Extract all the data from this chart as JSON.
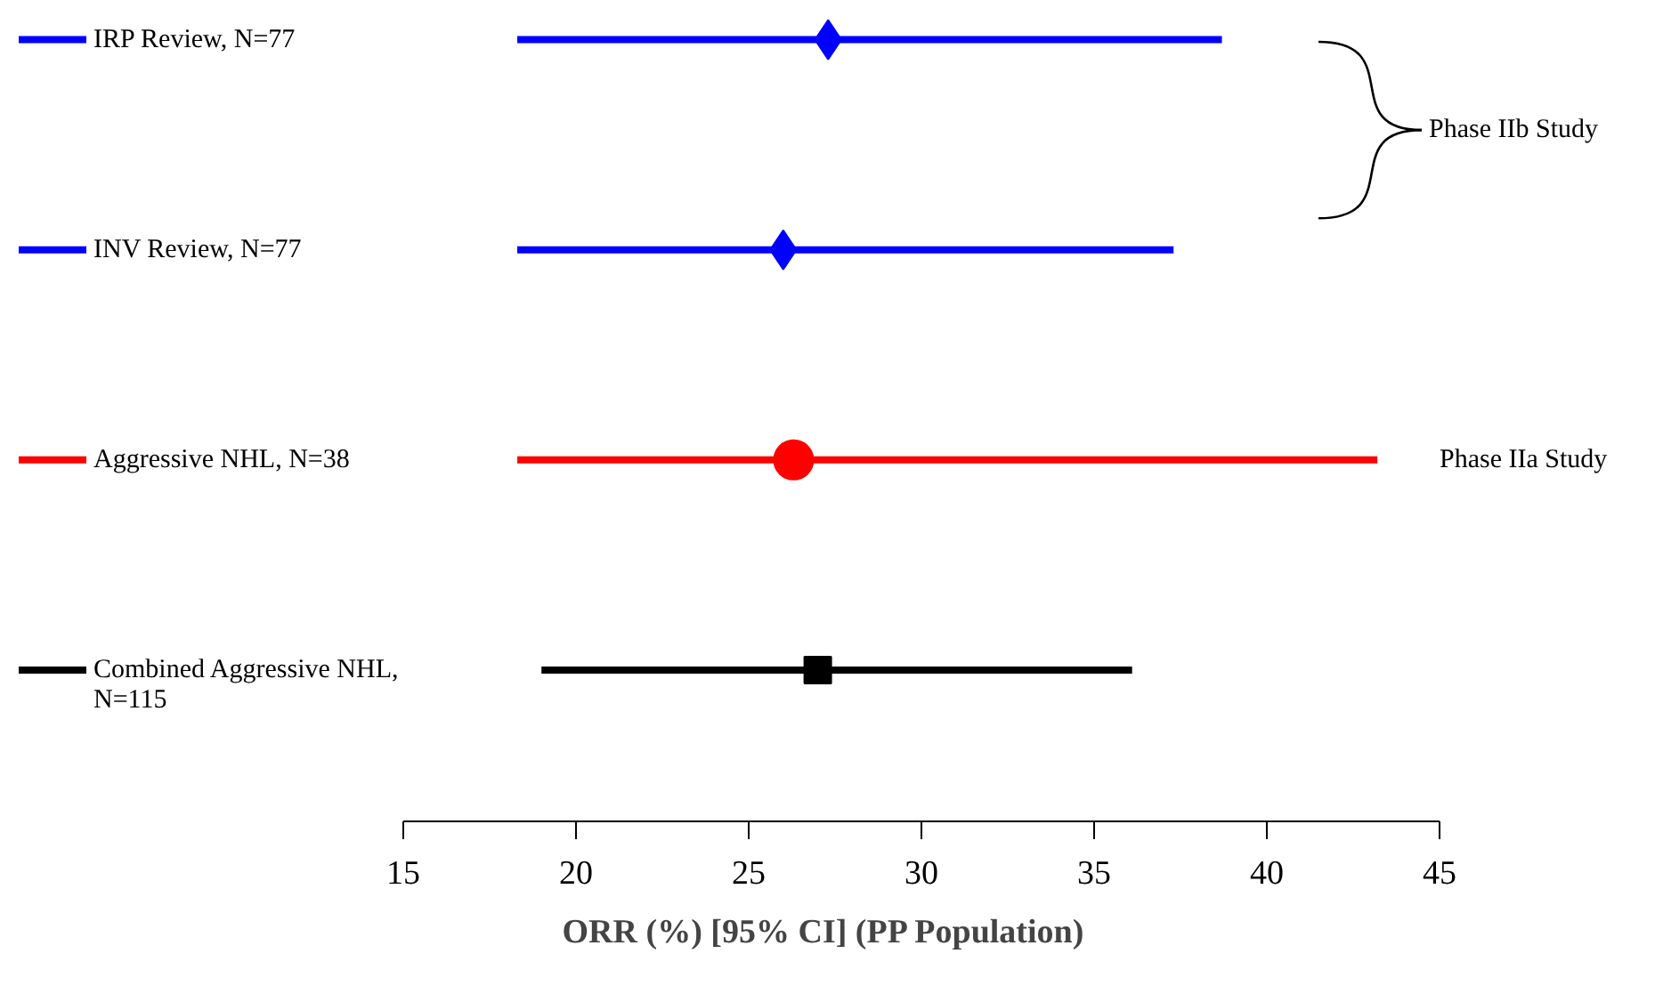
{
  "chart_data": {
    "type": "scatter",
    "orientation": "horizontal",
    "xlabel": "ORR (%) [95% CI]   (PP Population)",
    "categories": [
      "IRP Review, N=77",
      "INV Review, N=77",
      "Aggressive NHL, N=38",
      "Combined Aggressive NHL, N=115"
    ],
    "xlim": [
      15,
      45
    ],
    "xticks": [
      15,
      20,
      25,
      30,
      35,
      40,
      45
    ],
    "grid": false,
    "series": [
      {
        "color": "#0000ff",
        "marker": "diamond",
        "values": [
          27.3,
          null,
          null,
          null
        ],
        "errors": [
          [
            18.3,
            38.7
          ],
          null,
          null,
          null
        ]
      },
      {
        "color": "#0000ff",
        "marker": "diamond",
        "values": [
          null,
          26.0,
          null,
          null
        ],
        "errors": [
          null,
          [
            18.3,
            37.3
          ],
          null,
          null
        ]
      },
      {
        "color": "#ff0000",
        "marker": "circle",
        "values": [
          null,
          null,
          26.3,
          null
        ],
        "errors": [
          null,
          null,
          [
            18.3,
            43.2
          ],
          null
        ]
      },
      {
        "color": "#000000",
        "marker": "square",
        "values": [
          null,
          null,
          null,
          27.0
        ],
        "errors": [
          null,
          null,
          null,
          [
            19.0,
            36.1
          ]
        ]
      }
    ],
    "annotations": [
      "Phase IIb Study",
      "Phase IIa Study"
    ]
  }
}
